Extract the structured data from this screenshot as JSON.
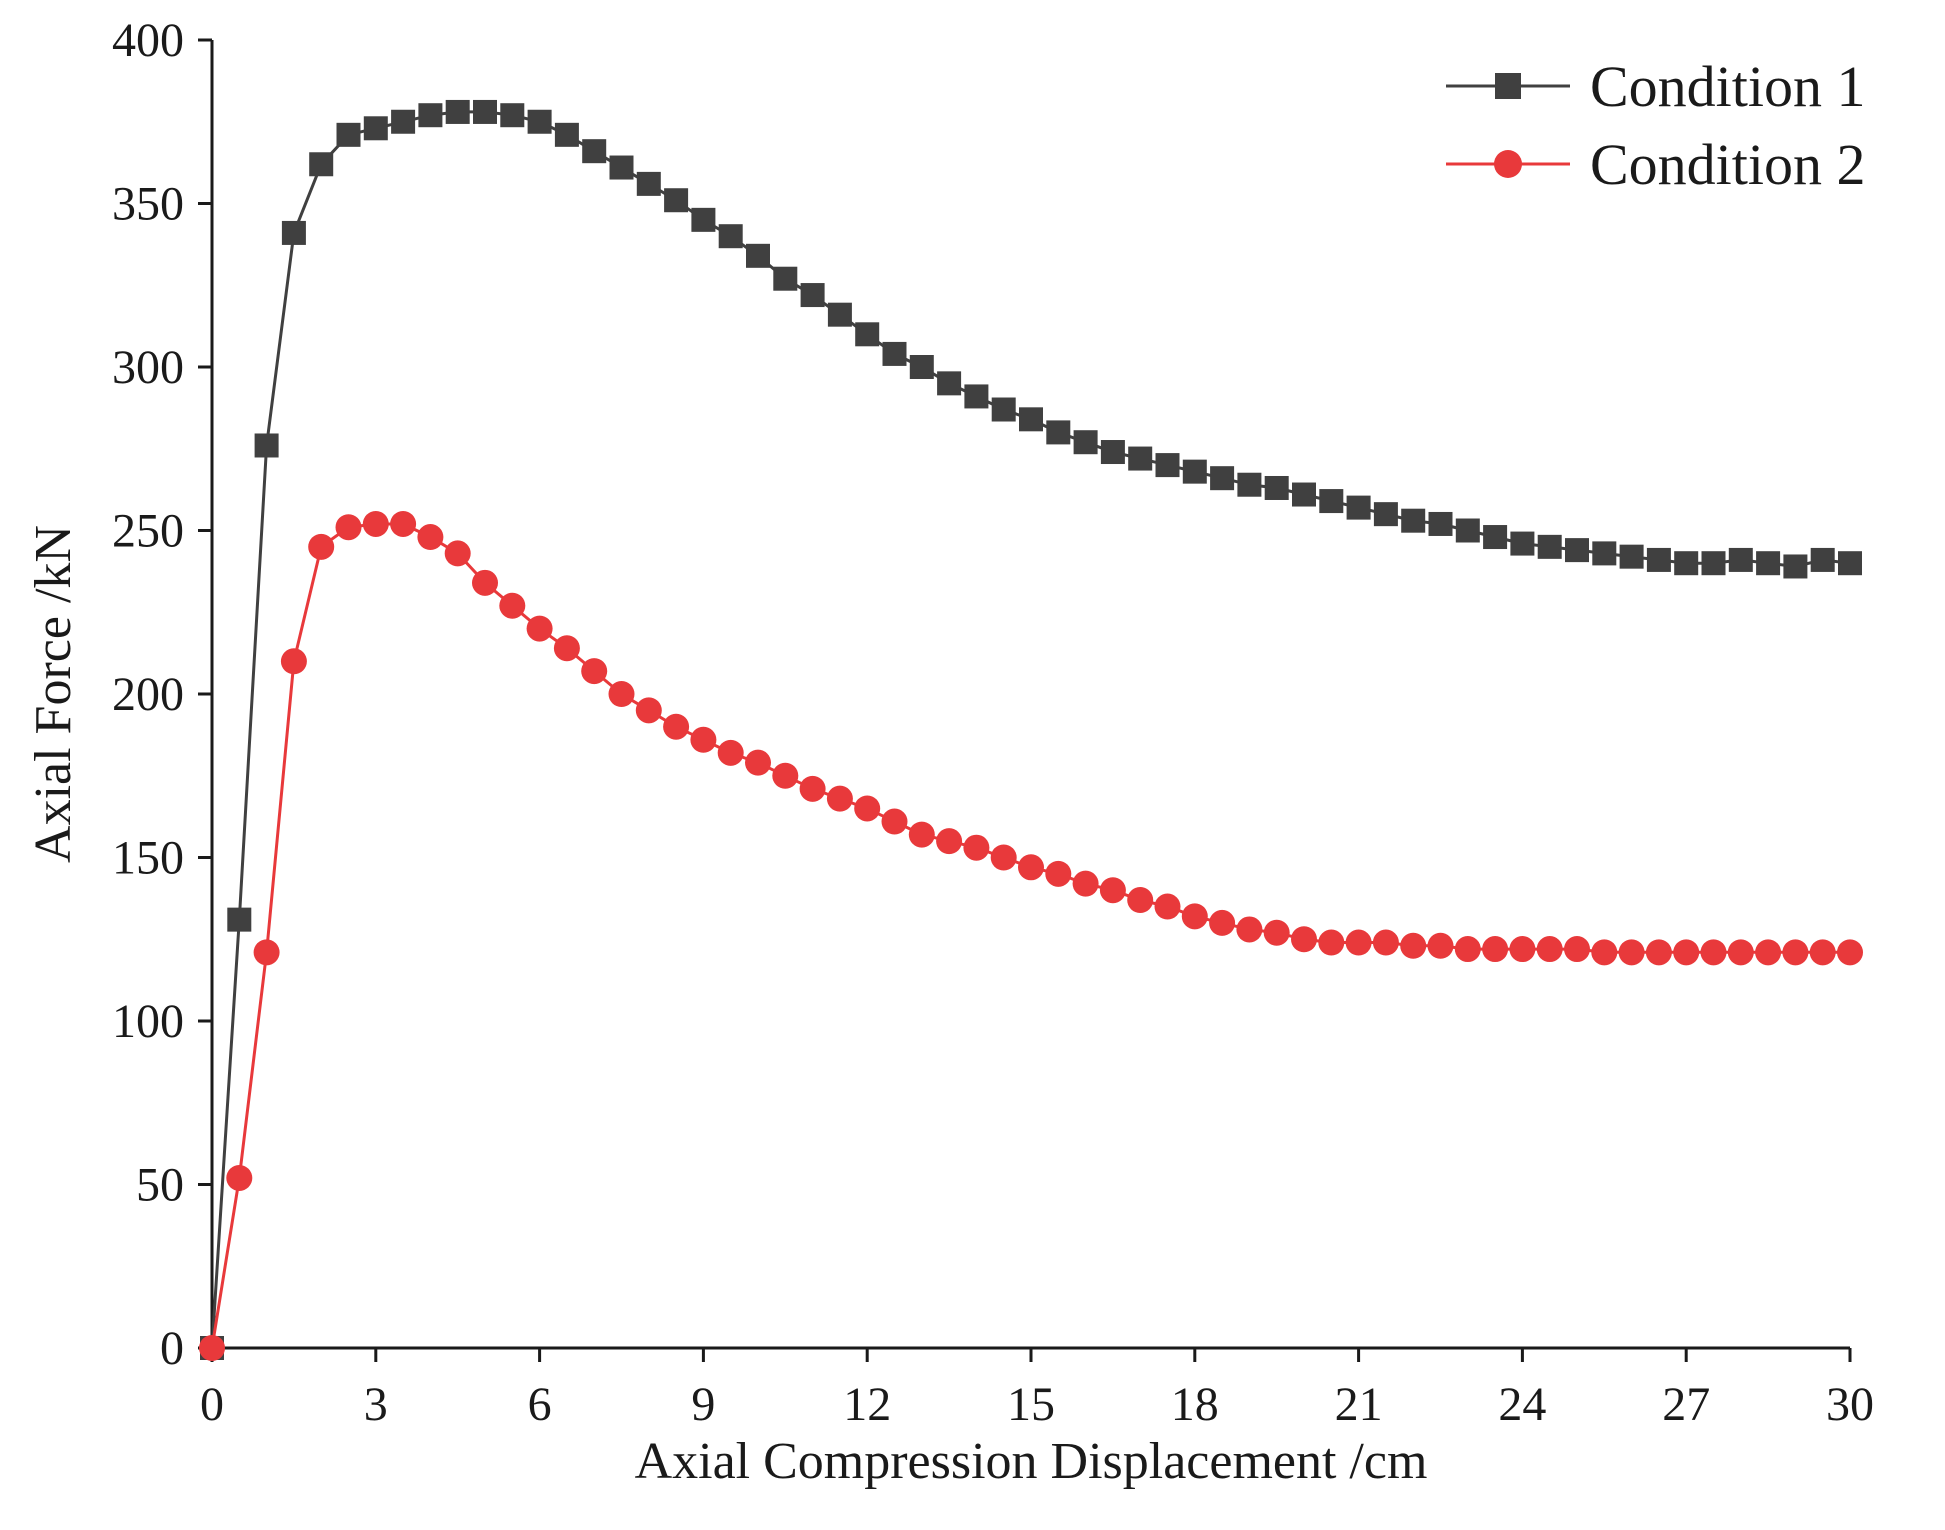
{
  "chart_data": {
    "type": "line",
    "title": "",
    "xlabel": "Axial Compression Displacement /cm",
    "ylabel": "Axial Force /kN",
    "xlim": [
      0,
      30
    ],
    "ylim": [
      0,
      400
    ],
    "xticks": [
      0,
      3,
      6,
      9,
      12,
      15,
      18,
      21,
      24,
      27,
      30
    ],
    "yticks": [
      0,
      50,
      100,
      150,
      200,
      250,
      300,
      350,
      400
    ],
    "grid": false,
    "legend_position": "top-right",
    "series": [
      {
        "name": "Condition 1",
        "marker": "square",
        "color": "#404040",
        "x": [
          0,
          0.5,
          1,
          1.5,
          2,
          2.5,
          3,
          3.5,
          4,
          4.5,
          5,
          5.5,
          6,
          6.5,
          7,
          7.5,
          8,
          8.5,
          9,
          9.5,
          10,
          10.5,
          11,
          11.5,
          12,
          12.5,
          13,
          13.5,
          14,
          14.5,
          15,
          15.5,
          16,
          16.5,
          17,
          17.5,
          18,
          18.5,
          19,
          19.5,
          20,
          20.5,
          21,
          21.5,
          22,
          22.5,
          23,
          23.5,
          24,
          24.5,
          25,
          25.5,
          26,
          26.5,
          27,
          27.5,
          28,
          28.5,
          29,
          29.5,
          30
        ],
        "values": [
          0,
          131,
          276,
          341,
          362,
          371,
          373,
          375,
          377,
          378,
          378,
          377,
          375,
          371,
          366,
          361,
          356,
          351,
          345,
          340,
          334,
          327,
          322,
          316,
          310,
          304,
          300,
          295,
          291,
          287,
          284,
          280,
          277,
          274,
          272,
          270,
          268,
          266,
          264,
          263,
          261,
          259,
          257,
          255,
          253,
          252,
          250,
          248,
          246,
          245,
          244,
          243,
          242,
          241,
          240,
          240,
          241,
          240,
          239,
          241,
          240
        ]
      },
      {
        "name": "Condition 2",
        "marker": "circle",
        "color": "#e8393b",
        "x": [
          0,
          0.5,
          1,
          1.5,
          2,
          2.5,
          3,
          3.5,
          4,
          4.5,
          5,
          5.5,
          6,
          6.5,
          7,
          7.5,
          8,
          8.5,
          9,
          9.5,
          10,
          10.5,
          11,
          11.5,
          12,
          12.5,
          13,
          13.5,
          14,
          14.5,
          15,
          15.5,
          16,
          16.5,
          17,
          17.5,
          18,
          18.5,
          19,
          19.5,
          20,
          20.5,
          21,
          21.5,
          22,
          22.5,
          23,
          23.5,
          24,
          24.5,
          25,
          25.5,
          26,
          26.5,
          27,
          27.5,
          28,
          28.5,
          29,
          29.5,
          30
        ],
        "values": [
          0,
          52,
          121,
          210,
          245,
          251,
          252,
          252,
          248,
          243,
          234,
          227,
          220,
          214,
          207,
          200,
          195,
          190,
          186,
          182,
          179,
          175,
          171,
          168,
          165,
          161,
          157,
          155,
          153,
          150,
          147,
          145,
          142,
          140,
          137,
          135,
          132,
          130,
          128,
          127,
          125,
          124,
          124,
          124,
          123,
          123,
          122,
          122,
          122,
          122,
          122,
          121,
          121,
          121,
          121,
          121,
          121,
          121,
          121,
          121,
          121
        ]
      }
    ]
  }
}
